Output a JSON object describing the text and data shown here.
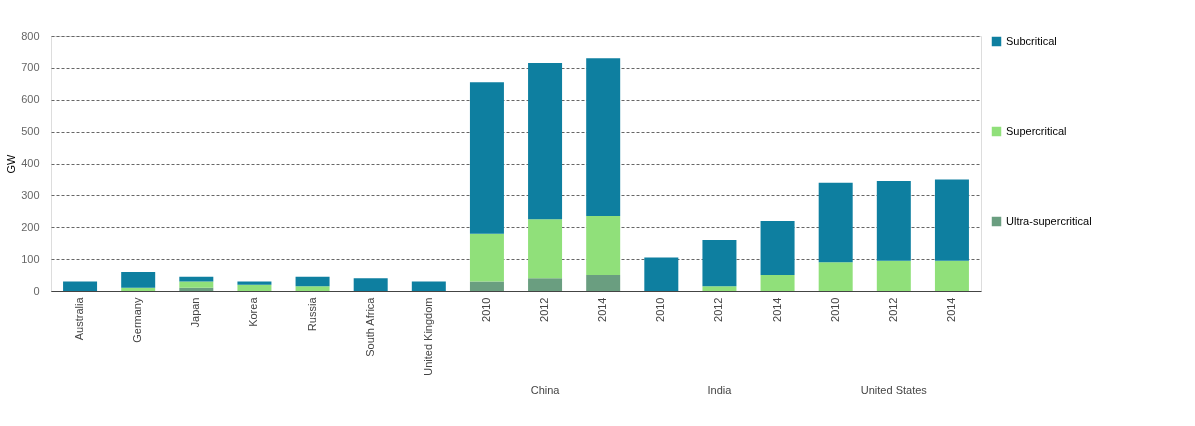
{
  "chart_data": {
    "type": "bar",
    "stacked": true,
    "ylabel": "GW",
    "categories": [
      "Australia",
      "Germany",
      "Japan",
      "Korea",
      "Russia",
      "South Africa",
      "United Kingdom",
      "2010",
      "2012",
      "2014",
      "2010",
      "2012",
      "2014",
      "2010",
      "2012",
      "2014"
    ],
    "series": [
      {
        "name": "Ultra-supercritical",
        "color": "#6a9e80",
        "values": [
          0,
          0,
          10,
          0,
          0,
          0,
          0,
          30,
          40,
          50,
          0,
          0,
          0,
          0,
          0,
          0
        ]
      },
      {
        "name": "Supercritical",
        "color": "#90e07a",
        "values": [
          0,
          10,
          20,
          20,
          15,
          0,
          0,
          150,
          185,
          185,
          0,
          15,
          50,
          90,
          95,
          95
        ]
      },
      {
        "name": "Subcritical",
        "color": "#0e7fa0",
        "values": [
          30,
          50,
          15,
          10,
          30,
          40,
          30,
          475,
          490,
          495,
          105,
          145,
          170,
          250,
          250,
          255
        ]
      }
    ],
    "ylim": [
      0,
      800
    ],
    "yticks": [
      0,
      100,
      200,
      300,
      400,
      500,
      600,
      700,
      800
    ],
    "grid": "y",
    "legend": "right",
    "annotations": [
      "China",
      "India",
      "United States"
    ]
  }
}
